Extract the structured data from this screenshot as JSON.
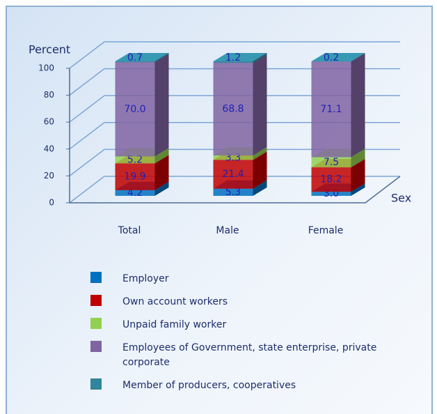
{
  "chart_data": {
    "type": "bar3d_stacked",
    "y_label": "Percent",
    "x_label": "Sex",
    "categories": [
      "Total",
      "Male",
      "Female"
    ],
    "ylim": [
      0,
      100
    ],
    "yticks": [
      0,
      20,
      40,
      60,
      80,
      100
    ],
    "grid": true,
    "series": [
      {
        "name": "Employer",
        "color": "#0070c0",
        "values": [
          4.2,
          5.3,
          3.0
        ],
        "value_labels": [
          "4.2",
          "5.3",
          "3.0"
        ]
      },
      {
        "name": "Own account workers",
        "color": "#c00000",
        "values": [
          19.9,
          21.4,
          18.2
        ],
        "value_labels": [
          "19.9",
          "21.4",
          "18.2"
        ]
      },
      {
        "name": "Unpaid family worker",
        "color": "#92d050",
        "values": [
          5.2,
          3.3,
          7.5
        ],
        "value_labels": [
          "5.2",
          "3.3",
          "7.5"
        ]
      },
      {
        "name": "Employees of Government, state enterprise, private corporate",
        "color": "#8064a2",
        "values": [
          70.0,
          68.8,
          71.1
        ],
        "value_labels": [
          "70.0",
          "68.8",
          "71.1"
        ]
      },
      {
        "name": "Member of producers, cooperatives",
        "color": "#31859c",
        "values": [
          0.7,
          1.2,
          0.2
        ],
        "value_labels": [
          "0.7",
          "1.2",
          "0.2"
        ]
      }
    ]
  }
}
